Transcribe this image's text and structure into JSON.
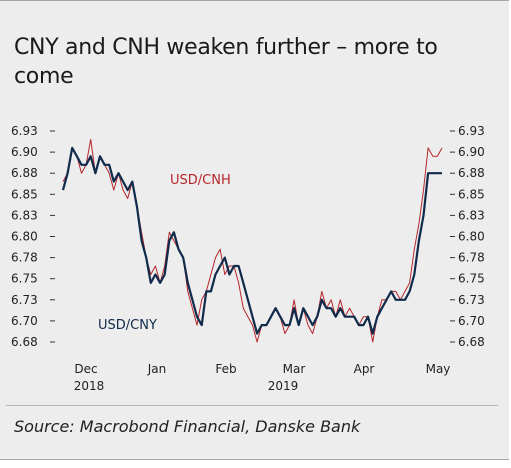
{
  "title": "CNY and CNH weaken further – more to come",
  "source": "Source: Macrobond Financial, Danske Bank",
  "chart_data": {
    "type": "line",
    "left_axis": {
      "ticks": [
        "6.93",
        "6.90",
        "6.88",
        "6.85",
        "6.83",
        "6.80",
        "6.78",
        "6.75",
        "6.73",
        "6.70",
        "6.68"
      ],
      "ylim": [
        6.68,
        6.93
      ]
    },
    "right_axis": {
      "ticks": [
        "6.93",
        "6.90",
        "6.88",
        "6.85",
        "6.83",
        "6.80",
        "6.78",
        "6.75",
        "6.73",
        "6.70",
        "6.68"
      ],
      "ylim": [
        6.68,
        6.93
      ]
    },
    "x_ticks": [
      "Dec",
      "Jan",
      "Feb",
      "Mar",
      "Apr",
      "May"
    ],
    "x_year_labels": [
      "2018",
      "2019"
    ],
    "grid": false,
    "series": [
      {
        "name": "USD/CNH",
        "color": "#b5262b",
        "values": [
          6.87,
          6.88,
          6.91,
          6.9,
          6.88,
          6.89,
          6.92,
          6.88,
          6.9,
          6.89,
          6.88,
          6.86,
          6.88,
          6.86,
          6.85,
          6.87,
          6.84,
          6.81,
          6.78,
          6.76,
          6.77,
          6.75,
          6.77,
          6.81,
          6.8,
          6.79,
          6.78,
          6.74,
          6.72,
          6.7,
          6.73,
          6.74,
          6.76,
          6.78,
          6.79,
          6.76,
          6.77,
          6.77,
          6.75,
          6.72,
          6.71,
          6.7,
          6.68,
          6.7,
          6.7,
          6.71,
          6.72,
          6.71,
          6.69,
          6.7,
          6.73,
          6.7,
          6.72,
          6.7,
          6.69,
          6.71,
          6.74,
          6.72,
          6.73,
          6.71,
          6.73,
          6.71,
          6.72,
          6.71,
          6.7,
          6.71,
          6.71,
          6.68,
          6.71,
          6.73,
          6.73,
          6.74,
          6.74,
          6.73,
          6.74,
          6.75,
          6.79,
          6.82,
          6.86,
          6.91,
          6.9,
          6.9,
          6.91
        ]
      },
      {
        "name": "USD/CNY",
        "color": "#0f2a4a",
        "values": [
          6.86,
          6.88,
          6.91,
          6.9,
          6.89,
          6.89,
          6.9,
          6.88,
          6.9,
          6.89,
          6.89,
          6.87,
          6.88,
          6.87,
          6.86,
          6.87,
          6.84,
          6.8,
          6.78,
          6.75,
          6.76,
          6.75,
          6.76,
          6.8,
          6.81,
          6.79,
          6.78,
          6.75,
          6.73,
          6.71,
          6.7,
          6.74,
          6.74,
          6.76,
          6.77,
          6.78,
          6.76,
          6.77,
          6.77,
          6.75,
          6.73,
          6.71,
          6.69,
          6.7,
          6.7,
          6.71,
          6.72,
          6.71,
          6.7,
          6.7,
          6.72,
          6.7,
          6.72,
          6.71,
          6.7,
          6.71,
          6.73,
          6.72,
          6.72,
          6.71,
          6.72,
          6.71,
          6.71,
          6.71,
          6.7,
          6.7,
          6.71,
          6.69,
          6.71,
          6.72,
          6.73,
          6.74,
          6.73,
          6.73,
          6.73,
          6.74,
          6.76,
          6.8,
          6.83,
          6.88,
          6.88,
          6.88,
          6.88
        ]
      }
    ]
  }
}
